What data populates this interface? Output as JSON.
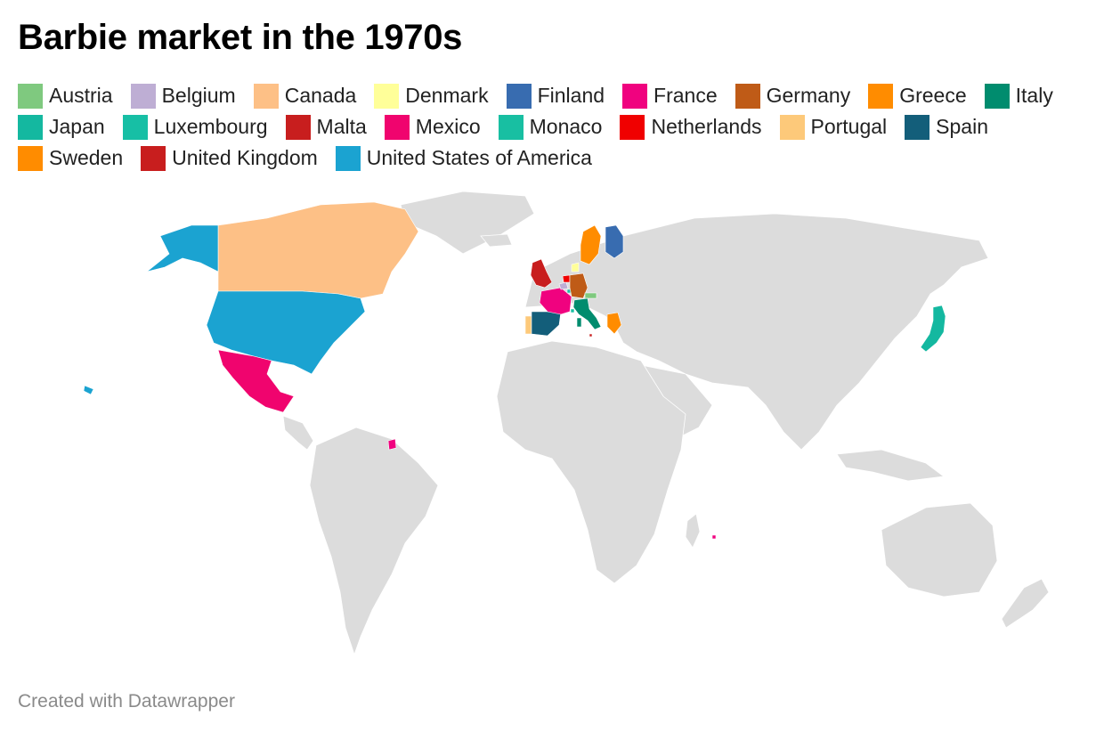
{
  "title": "Barbie market in the 1970s",
  "credit": "Created with Datawrapper",
  "base_country_color": "#dcdcdc",
  "legend": [
    {
      "label": "Austria",
      "color": "#7fc97f"
    },
    {
      "label": "Belgium",
      "color": "#beaed4"
    },
    {
      "label": "Canada",
      "color": "#fdc086"
    },
    {
      "label": "Denmark",
      "color": "#ffff99"
    },
    {
      "label": "Finland",
      "color": "#386cb0"
    },
    {
      "label": "France",
      "color": "#f0027f"
    },
    {
      "label": "Germany",
      "color": "#bf5b17"
    },
    {
      "label": "Greece",
      "color": "#ff8c00"
    },
    {
      "label": "Italy",
      "color": "#008c6e"
    },
    {
      "label": "Japan",
      "color": "#14b8a0"
    },
    {
      "label": "Luxembourg",
      "color": "#17bfa5"
    },
    {
      "label": "Malta",
      "color": "#c81e1e"
    },
    {
      "label": "Mexico",
      "color": "#f0046e"
    },
    {
      "label": "Monaco",
      "color": "#18bfa2"
    },
    {
      "label": "Netherlands",
      "color": "#f00000"
    },
    {
      "label": "Portugal",
      "color": "#fdc97a"
    },
    {
      "label": "Spain",
      "color": "#135e7a"
    },
    {
      "label": "Sweden",
      "color": "#ff8c00"
    },
    {
      "label": "United Kingdom",
      "color": "#c81e1e"
    },
    {
      "label": "United States of America",
      "color": "#1ba3d1"
    }
  ],
  "map_icons": [
    "world-map"
  ]
}
